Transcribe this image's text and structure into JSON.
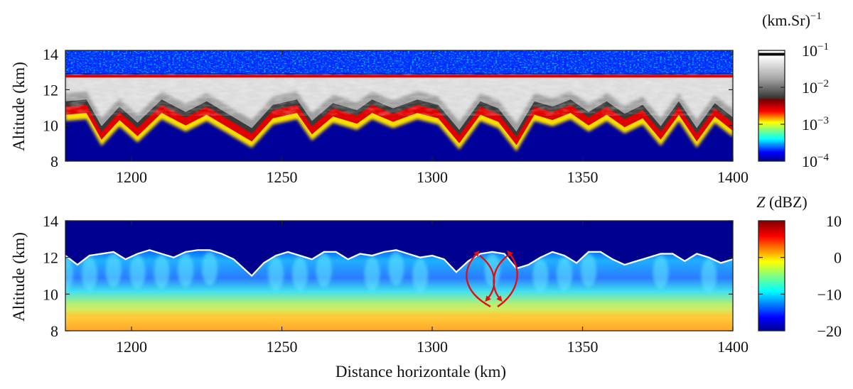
{
  "chart_data": [
    {
      "type": "heatmap",
      "panel": "top",
      "ylabel": "Altitude (km)",
      "xlim": [
        1178,
        1400
      ],
      "ylim": [
        8,
        14.2
      ],
      "x_ticks": [
        "1200",
        "1250",
        "1300",
        "1350",
        "1400"
      ],
      "x_tick_values": [
        1200,
        1250,
        1300,
        1350,
        1400
      ],
      "y_ticks": [
        "8",
        "10",
        "12",
        "14"
      ],
      "y_tick_values": [
        8,
        10,
        12,
        14
      ],
      "cloud_top_km": 12.75,
      "cloud_base_x": [
        1178,
        1185,
        1190,
        1196,
        1202,
        1210,
        1218,
        1225,
        1232,
        1240,
        1247,
        1255,
        1260,
        1267,
        1275,
        1280,
        1287,
        1295,
        1302,
        1309,
        1316,
        1322,
        1328,
        1334,
        1340,
        1346,
        1352,
        1358,
        1364,
        1370,
        1376,
        1382,
        1388,
        1394,
        1400
      ],
      "cloud_base_y": [
        10.8,
        10.9,
        9.4,
        10.5,
        9.6,
        10.9,
        10.2,
        10.8,
        10.1,
        9.3,
        10.6,
        10.9,
        9.7,
        10.7,
        10.3,
        10.9,
        10.4,
        10.9,
        10.6,
        9.2,
        10.8,
        10.4,
        9.1,
        10.8,
        10.5,
        10.9,
        10.2,
        10.8,
        10.1,
        10.6,
        9.4,
        10.8,
        9.3,
        10.7,
        9.9
      ],
      "colorbar": {
        "title": "(km.Sr)",
        "exponent": "−1",
        "scale": "log",
        "range": [
          0.0001,
          0.1
        ],
        "tick_base": "10",
        "tick_exponents": [
          "−1",
          "−2",
          "−3",
          "−4"
        ],
        "tick_values": [
          0.1,
          0.01,
          0.001,
          0.0001
        ]
      }
    },
    {
      "type": "heatmap",
      "panel": "bottom",
      "xlabel": "Distance horizontale (km)",
      "ylabel": "Altitude (km)",
      "xlim": [
        1178,
        1400
      ],
      "ylim": [
        8,
        14
      ],
      "x_ticks": [
        "1200",
        "1250",
        "1300",
        "1350",
        "1400"
      ],
      "x_tick_values": [
        1200,
        1250,
        1300,
        1350,
        1400
      ],
      "y_ticks": [
        "8",
        "10",
        "12",
        "14"
      ],
      "y_tick_values": [
        8,
        10,
        12,
        14
      ],
      "cloud_top_line": {
        "color": "#ffffff",
        "x": [
          1178,
          1182,
          1186,
          1190,
          1194,
          1198,
          1202,
          1206,
          1210,
          1214,
          1218,
          1222,
          1226,
          1230,
          1234,
          1238,
          1240,
          1244,
          1248,
          1252,
          1256,
          1260,
          1264,
          1268,
          1272,
          1276,
          1280,
          1284,
          1288,
          1292,
          1296,
          1300,
          1304,
          1308,
          1312,
          1316,
          1320,
          1324,
          1328,
          1332,
          1336,
          1340,
          1344,
          1348,
          1352,
          1356,
          1360,
          1364,
          1368,
          1372,
          1376,
          1380,
          1384,
          1388,
          1392,
          1396,
          1400
        ],
        "y": [
          12.1,
          11.6,
          12.1,
          12.2,
          12.3,
          11.9,
          12.2,
          12.4,
          12.2,
          12.0,
          12.3,
          12.4,
          12.4,
          12.2,
          11.9,
          11.3,
          11.0,
          11.7,
          12.1,
          12.3,
          12.1,
          11.9,
          12.3,
          12.3,
          11.9,
          12.2,
          12.1,
          12.3,
          12.4,
          12.2,
          12.0,
          12.1,
          11.9,
          11.2,
          11.8,
          12.2,
          12.3,
          12.2,
          11.4,
          11.6,
          12.0,
          12.3,
          12.1,
          11.7,
          12.3,
          12.3,
          11.9,
          11.6,
          11.8,
          12.0,
          12.2,
          12.2,
          11.8,
          12.2,
          12.0,
          11.7,
          11.9
        ]
      },
      "annotation": "red curved arrows",
      "colorbar": {
        "title_var": "Z",
        "title_unit": "(dBZ)",
        "scale": "linear",
        "range": [
          -20,
          10
        ],
        "ticks": [
          "10",
          "0",
          "−10",
          "−20"
        ],
        "tick_values": [
          10,
          0,
          -10,
          -20
        ]
      }
    }
  ]
}
